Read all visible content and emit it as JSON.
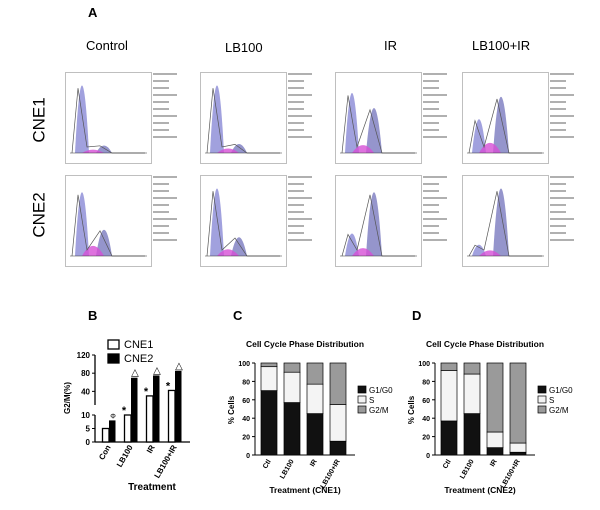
{
  "panel_a": {
    "letter": "A",
    "columns": [
      "Control",
      "LB100",
      "IR",
      "LB100+IR"
    ],
    "rows": [
      "CNE1",
      "CNE2"
    ]
  },
  "colors": {
    "g1": "#8a8ad6",
    "s": "#d64fd6",
    "g2m": "#7a7abf",
    "trace": "#555555"
  },
  "chart_data": [
    {
      "panel": "B",
      "type": "bar",
      "categories": [
        "Con",
        "LB100",
        "IR",
        "LB100+IR"
      ],
      "series": [
        {
          "name": "CNE1",
          "values": [
            5,
            10,
            30,
            42
          ]
        },
        {
          "name": "CNE2",
          "values": [
            8,
            70,
            75,
            85
          ]
        }
      ],
      "xlabel": "Treatment",
      "ylabel": "G2/M(%)",
      "y_lower_ticks": [
        "0",
        "5",
        "10"
      ],
      "y_upper_ticks": [
        "40",
        "80",
        "120"
      ],
      "axis_break": true,
      "legend_position": "top-right",
      "annotations": [
        "*",
        "*",
        "*",
        "Φ",
        "△",
        "△",
        "△"
      ]
    },
    {
      "panel": "C",
      "type": "stacked-bar",
      "title": "Cell Cycle Phase Distribution",
      "categories": [
        "Ctl",
        "LB100",
        "IR",
        "LB100+IR"
      ],
      "series": [
        {
          "name": "G1/G0",
          "values": [
            70,
            57,
            45,
            15
          ]
        },
        {
          "name": "S",
          "values": [
            26,
            33,
            32,
            40
          ]
        },
        {
          "name": "G2/M",
          "values": [
            4,
            10,
            23,
            45
          ]
        }
      ],
      "xlabel": "Treatment (CNE1)",
      "ylabel": "% Cells",
      "yticks": [
        "0",
        "20",
        "40",
        "60",
        "80",
        "100"
      ],
      "ylim": [
        0,
        100
      ],
      "legend_position": "right"
    },
    {
      "panel": "D",
      "type": "stacked-bar",
      "title": "Cell Cycle Phase Distribution",
      "categories": [
        "Ctl",
        "LB100",
        "IR",
        "LB100+IR"
      ],
      "series": [
        {
          "name": "G1/G0",
          "values": [
            37,
            45,
            8,
            3
          ]
        },
        {
          "name": "S",
          "values": [
            55,
            43,
            17,
            10
          ]
        },
        {
          "name": "G2/M",
          "values": [
            8,
            12,
            75,
            87
          ]
        }
      ],
      "xlabel": "Treatment (CNE2)",
      "ylabel": "% Cells",
      "yticks": [
        "0",
        "20",
        "40",
        "60",
        "80",
        "100"
      ],
      "ylim": [
        0,
        100
      ],
      "legend_position": "right"
    }
  ]
}
